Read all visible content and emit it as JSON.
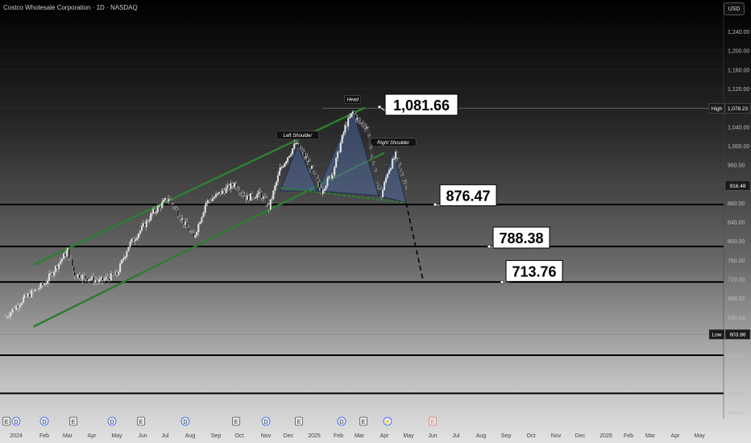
{
  "header": {
    "title": "Costco Wholesale Corporation · 1D · NASDAQ",
    "currency": "USD"
  },
  "colors": {
    "candle_up": "#e8e8e8",
    "candle_down": "#0a0a0a",
    "channel": "#2e7d32",
    "pattern_fill": "#4f6fae",
    "level_line": "#000000",
    "callout_bg": "#ffffff",
    "projection": "#000000"
  },
  "chart_data": {
    "type": "candlestick",
    "title": "Costco Wholesale Corporation · 1D · NASDAQ",
    "y_axis": {
      "ticks": [
        440,
        480,
        520,
        560,
        600,
        640,
        680,
        720,
        760,
        800,
        840,
        880,
        920,
        960,
        1000,
        1040,
        1080,
        1120,
        1160,
        1200,
        1240
      ],
      "tick_labels": [
        "440.00",
        "480.00",
        "520.00",
        "560.00",
        "600.00",
        "640.00",
        "680.00",
        "720.00",
        "760.00",
        "800.00",
        "840.00",
        "880.00",
        "920.00",
        "960.00",
        "1,000.00",
        "1,040.00",
        "1,080.00",
        "1,120.00",
        "1,160.00",
        "1,200.00",
        "1,240.00"
      ],
      "range": [
        430,
        1255
      ],
      "current_price": "916.48",
      "high_marker": {
        "label": "High",
        "value": "1,078.23"
      },
      "low_marker": {
        "label": "Low",
        "value": "603.86"
      }
    },
    "x_axis": {
      "months": [
        "2024-01",
        "2024-02",
        "2024-03",
        "2024-04",
        "2024-05",
        "2024-06",
        "2024-07",
        "2024-08",
        "2024-09",
        "2024-10",
        "2024-11",
        "2024-12",
        "2025-01",
        "2025-02",
        "2025-03",
        "2025-04",
        "2025-05",
        "2025-06",
        "2025-07",
        "2025-08",
        "2025-09",
        "2025-10",
        "2025-11",
        "2025-12",
        "2026-01",
        "2026-02",
        "2026-03",
        "2026-04",
        "2026-05"
      ],
      "labels": [
        "2024",
        "Feb",
        "Mar",
        "Apr",
        "May",
        "Jun",
        "Jul",
        "Aug",
        "Sep",
        "Oct",
        "Nov",
        "Dec",
        "2025",
        "Feb",
        "Mar",
        "Apr",
        "May",
        "Jun",
        "Jul",
        "Aug",
        "Sep",
        "Oct",
        "Nov",
        "Dec",
        "2026",
        "Feb",
        "Mar",
        "Apr",
        "May"
      ]
    },
    "price_path": [
      [
        "2023-12-20",
        640
      ],
      [
        "2024-01-10",
        680
      ],
      [
        "2024-02-01",
        710
      ],
      [
        "2024-03-01",
        780
      ],
      [
        "2024-03-10",
        730
      ],
      [
        "2024-04-10",
        715
      ],
      [
        "2024-05-01",
        730
      ],
      [
        "2024-05-15",
        790
      ],
      [
        "2024-06-15",
        860
      ],
      [
        "2024-07-05",
        890
      ],
      [
        "2024-07-20",
        850
      ],
      [
        "2024-08-05",
        805
      ],
      [
        "2024-08-20",
        880
      ],
      [
        "2024-09-10",
        905
      ],
      [
        "2024-09-25",
        920
      ],
      [
        "2024-10-10",
        890
      ],
      [
        "2024-10-25",
        900
      ],
      [
        "2024-11-05",
        870
      ],
      [
        "2024-11-20",
        950
      ],
      [
        "2024-12-10",
        1005
      ],
      [
        "2024-12-25",
        965
      ],
      [
        "2025-01-10",
        905
      ],
      [
        "2025-01-25",
        945
      ],
      [
        "2025-02-10",
        1040
      ],
      [
        "2025-02-20",
        1070
      ],
      [
        "2025-02-28",
        1050
      ],
      [
        "2025-03-10",
        1040
      ],
      [
        "2025-03-20",
        940
      ],
      [
        "2025-03-28",
        895
      ],
      [
        "2025-04-05",
        945
      ],
      [
        "2025-04-15",
        980
      ],
      [
        "2025-04-22",
        940
      ],
      [
        "2025-04-28",
        916
      ]
    ],
    "levels": [
      876.47,
      788.38,
      713.76,
      560,
      480
    ],
    "callouts": [
      "1,081.66",
      "876.47",
      "788.38",
      "713.76"
    ],
    "pattern": {
      "name": "head-and-shoulders",
      "labels": [
        "Left Shoulder",
        "Head",
        "Right Shoulder"
      ],
      "points": [
        [
          "2024-11-20",
          905
        ],
        [
          "2024-12-12",
          1000
        ],
        [
          "2025-01-05",
          905
        ],
        [
          "2025-02-20",
          1075
        ],
        [
          "2025-03-25",
          895
        ],
        [
          "2025-04-12",
          985
        ],
        [
          "2025-04-28",
          880
        ]
      ]
    },
    "channel": {
      "upper": [
        [
          "2024-01-20",
          750
        ],
        [
          "2025-03-08",
          1080
        ]
      ],
      "lower": [
        [
          "2024-01-20",
          620
        ],
        [
          "2025-04-01",
          985
        ]
      ]
    },
    "projection": [
      [
        "2025-04-28",
        880
      ],
      [
        "2025-05-20",
        714
      ]
    ],
    "event_badges": [
      "E",
      "D",
      "D",
      "E",
      "D",
      "E",
      "D",
      "E",
      "D",
      "E",
      "D",
      "E",
      "⚡",
      "E"
    ],
    "xlabel": "",
    "ylabel": ""
  }
}
